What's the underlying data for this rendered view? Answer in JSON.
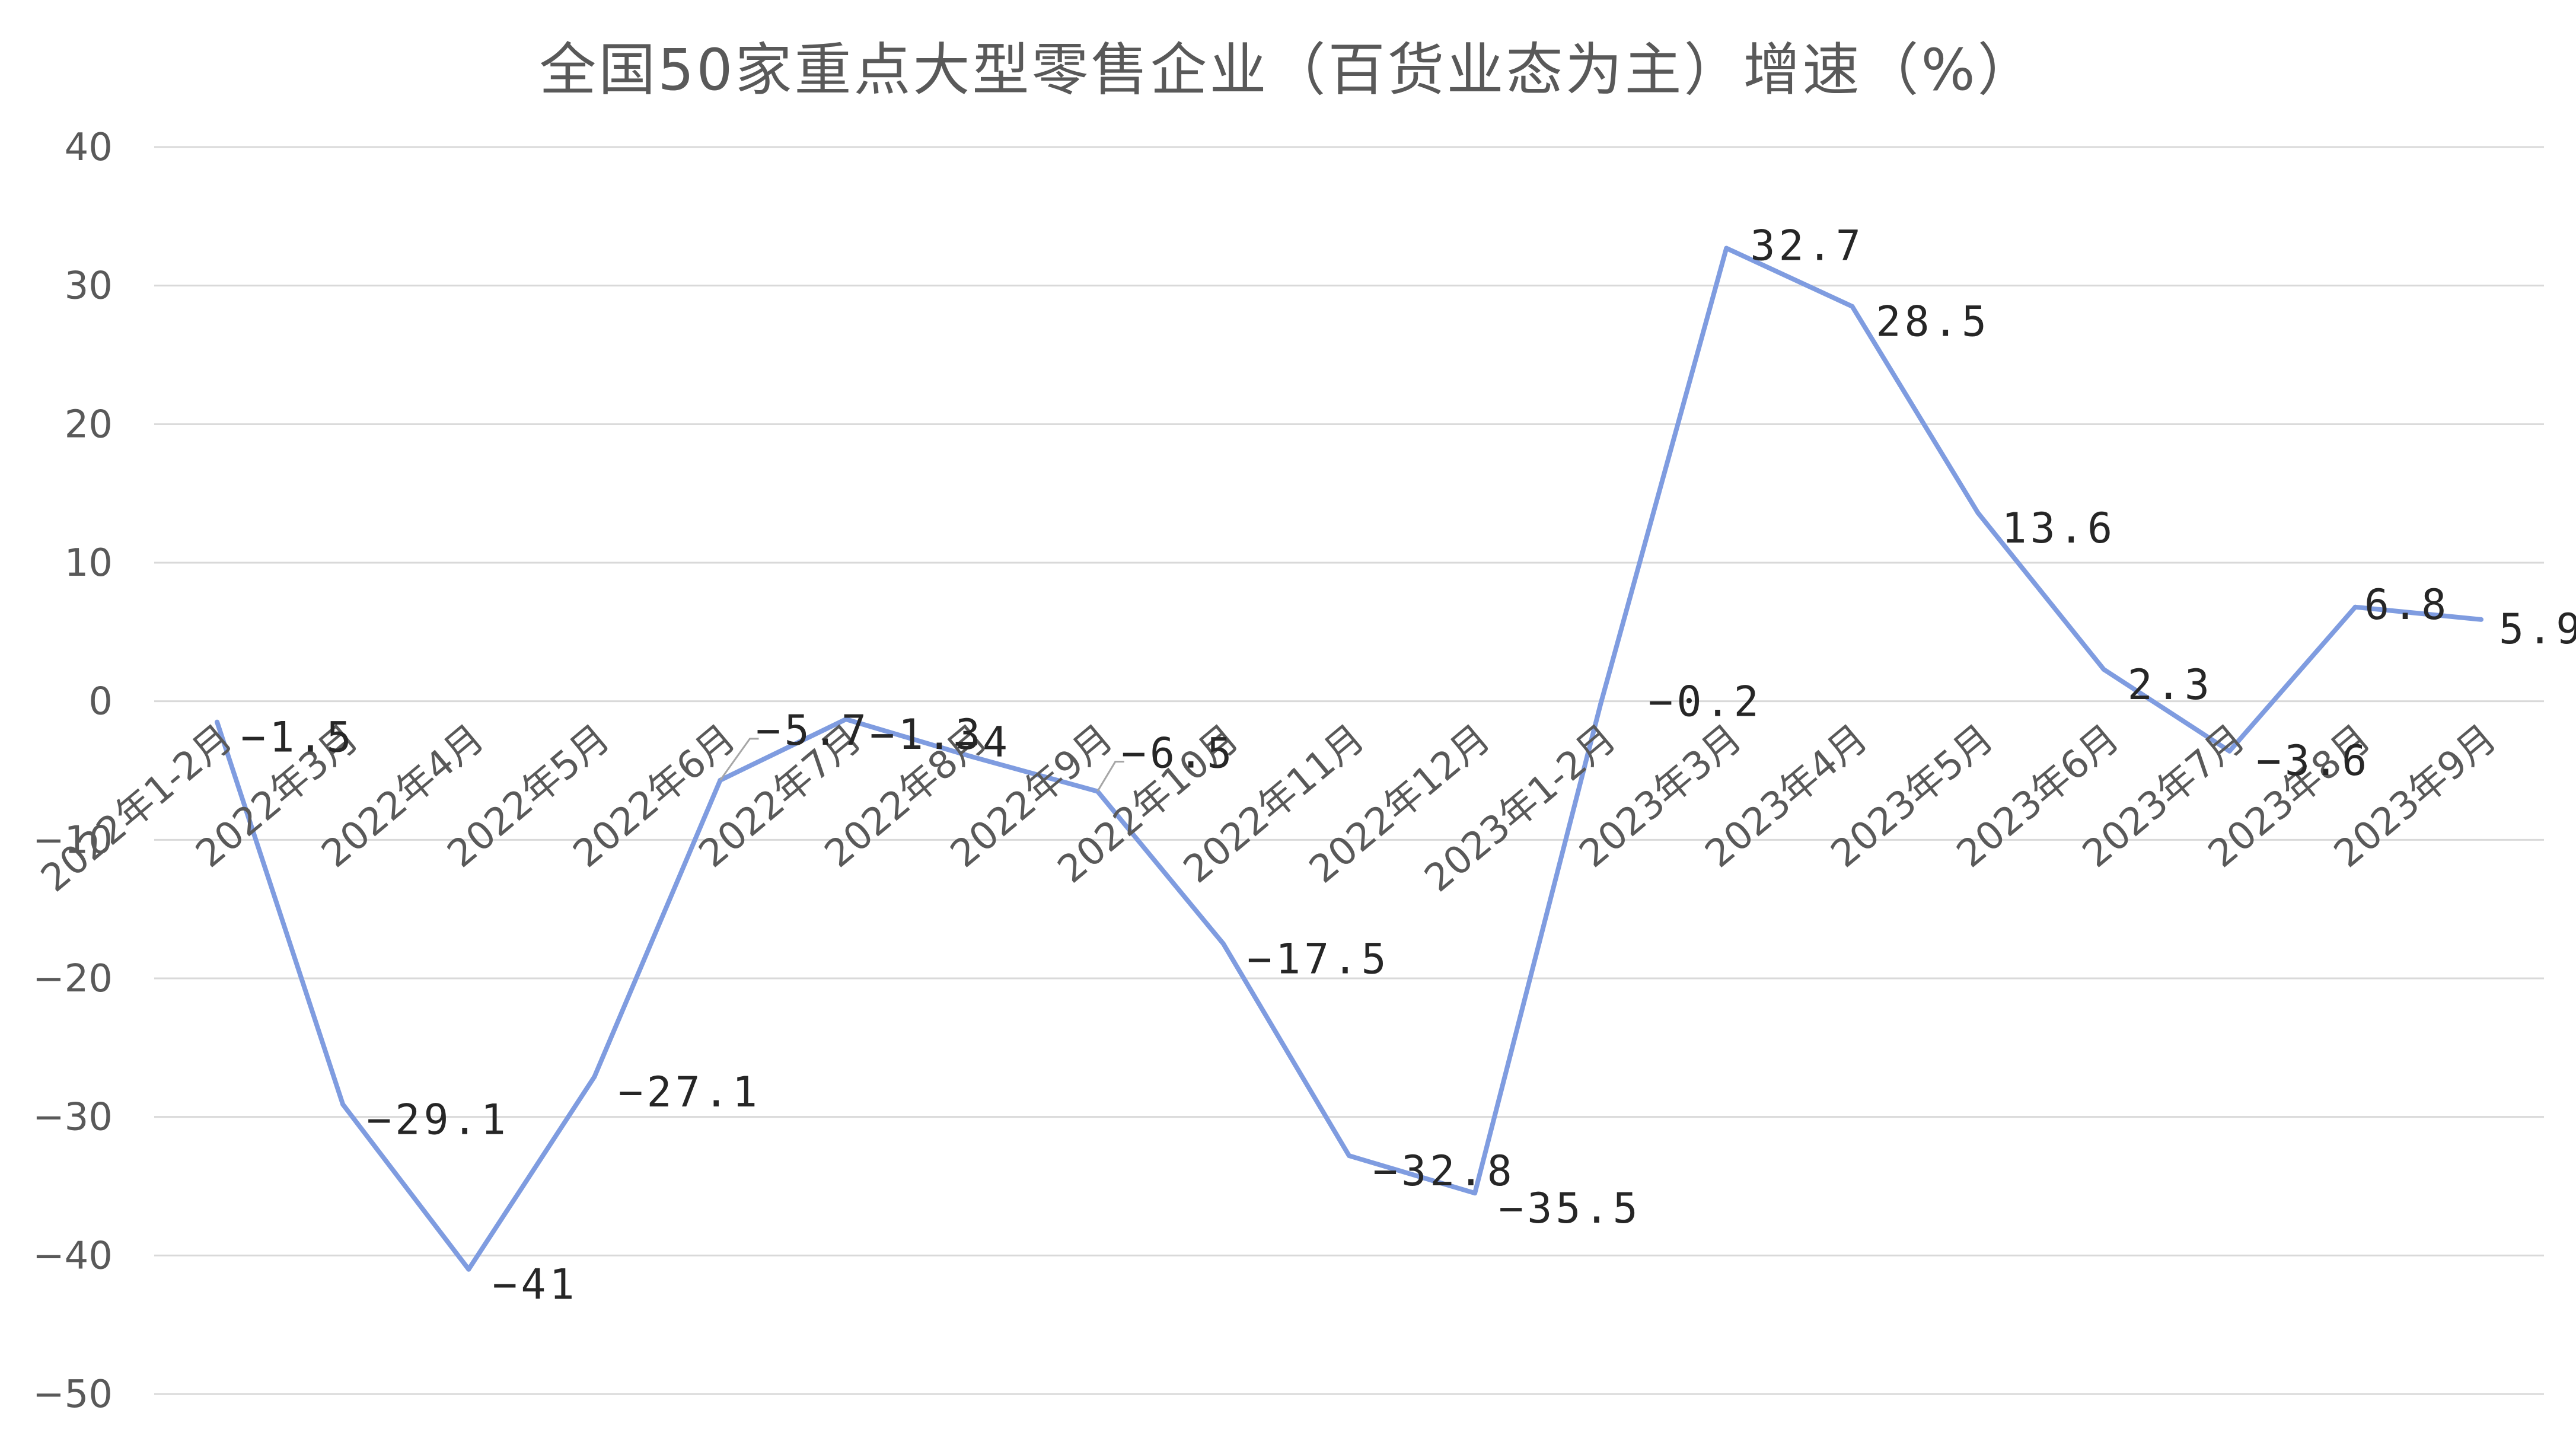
{
  "chart_data": {
    "type": "line",
    "title": "全国50家重点大型零售企业（百货业态为主）增速（%）",
    "xlabel": "",
    "ylabel": "",
    "ylim": [
      -50,
      40
    ],
    "yticks": [
      40,
      30,
      20,
      10,
      0,
      -10,
      -20,
      -30,
      -40,
      -50
    ],
    "yticks_labels": [
      "40",
      "30",
      "20",
      "10",
      "0",
      "−10",
      "−20",
      "−30",
      "−40",
      "−50"
    ],
    "grid": true,
    "legend": "none",
    "line_color": "#7f9ce0",
    "categories": [
      "2022年1-2月",
      "2022年3月",
      "2022年4月",
      "2022年5月",
      "2022年6月",
      "2022年7月",
      "2022年8月",
      "2022年9月",
      "2022年10月",
      "2022年11月",
      "2022年12月",
      "2023年1-2月",
      "2023年3月",
      "2023年4月",
      "2023年5月",
      "2023年6月",
      "2023年7月",
      "2023年8月",
      "2023年9月"
    ],
    "values": [
      -1.5,
      -29.1,
      -41,
      -27.1,
      -5.7,
      -1.3,
      -4,
      -6.5,
      -17.5,
      -32.8,
      -35.5,
      -0.2,
      32.7,
      28.5,
      13.6,
      2.3,
      -3.6,
      6.8,
      5.9
    ],
    "data_labels": [
      "−1.5",
      "−29.1",
      "−41",
      "−27.1",
      "−5.7",
      "−1.3",
      "−4",
      "−6.5",
      "−17.5",
      "−32.8",
      "−35.5",
      "−0.2",
      "32.7",
      "28.5",
      "13.6",
      "2.3",
      "−3.6",
      "6.8",
      "5.9"
    ]
  }
}
